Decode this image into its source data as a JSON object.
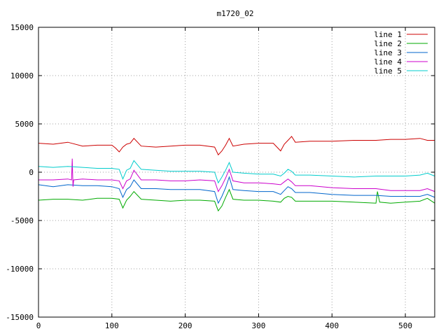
{
  "chart_data": {
    "type": "line",
    "title": "m1720_02",
    "xlabel": "",
    "ylabel": "",
    "xlim": [
      0,
      540
    ],
    "ylim": [
      -15000,
      15000
    ],
    "xticks": [
      0,
      100,
      200,
      300,
      400,
      500
    ],
    "yticks": [
      -15000,
      -10000,
      -5000,
      0,
      5000,
      10000,
      15000
    ],
    "grid": true,
    "legend_position": "top-right",
    "series": [
      {
        "name": "line 1",
        "color": "#cc0000",
        "x": [
          0,
          20,
          40,
          60,
          80,
          100,
          105,
          110,
          115,
          120,
          125,
          130,
          140,
          160,
          180,
          200,
          220,
          240,
          245,
          250,
          255,
          260,
          265,
          280,
          300,
          320,
          330,
          335,
          340,
          345,
          350,
          370,
          400,
          430,
          460,
          480,
          500,
          520,
          530,
          540
        ],
        "y": [
          3000,
          2900,
          3100,
          2700,
          2800,
          2800,
          2500,
          2100,
          2600,
          2900,
          3000,
          3500,
          2700,
          2600,
          2700,
          2800,
          2800,
          2600,
          1800,
          2200,
          2800,
          3500,
          2700,
          2900,
          3000,
          3000,
          2200,
          2900,
          3300,
          3700,
          3100,
          3200,
          3200,
          3300,
          3300,
          3400,
          3400,
          3500,
          3300,
          3300
        ]
      },
      {
        "name": "line 2",
        "color": "#00aa00",
        "x": [
          0,
          20,
          40,
          60,
          80,
          100,
          110,
          115,
          120,
          125,
          130,
          140,
          160,
          180,
          200,
          220,
          240,
          245,
          250,
          255,
          260,
          265,
          280,
          300,
          320,
          330,
          335,
          340,
          345,
          350,
          370,
          400,
          430,
          460,
          462,
          465,
          480,
          500,
          520,
          530,
          540
        ],
        "y": [
          -2900,
          -2800,
          -2800,
          -2900,
          -2700,
          -2700,
          -2800,
          -3700,
          -2900,
          -2500,
          -2000,
          -2800,
          -2900,
          -3000,
          -2900,
          -2900,
          -3000,
          -4000,
          -3500,
          -2600,
          -1800,
          -2800,
          -2900,
          -2900,
          -3000,
          -3100,
          -2700,
          -2500,
          -2600,
          -3000,
          -3000,
          -3000,
          -3100,
          -3200,
          -2000,
          -3100,
          -3200,
          -3100,
          -3000,
          -2700,
          -3200
        ]
      },
      {
        "name": "line 3",
        "color": "#0066cc",
        "x": [
          0,
          20,
          40,
          60,
          80,
          100,
          110,
          115,
          120,
          125,
          130,
          140,
          160,
          180,
          200,
          220,
          240,
          245,
          250,
          255,
          260,
          265,
          280,
          300,
          320,
          330,
          335,
          340,
          345,
          350,
          370,
          400,
          430,
          460,
          480,
          500,
          520,
          530,
          540
        ],
        "y": [
          -1300,
          -1500,
          -1300,
          -1400,
          -1400,
          -1500,
          -1700,
          -2600,
          -1800,
          -1500,
          -800,
          -1700,
          -1700,
          -1800,
          -1800,
          -1800,
          -2000,
          -3200,
          -2500,
          -1600,
          -500,
          -1800,
          -1900,
          -2000,
          -2000,
          -2300,
          -1900,
          -1500,
          -1700,
          -2100,
          -2100,
          -2300,
          -2400,
          -2400,
          -2500,
          -2500,
          -2500,
          -2300,
          -2600
        ]
      },
      {
        "name": "line 4",
        "color": "#cc00cc",
        "x": [
          0,
          20,
          40,
          45,
          46,
          47,
          48,
          60,
          80,
          100,
          110,
          115,
          120,
          125,
          130,
          140,
          160,
          180,
          200,
          220,
          240,
          245,
          250,
          255,
          260,
          265,
          280,
          300,
          320,
          330,
          335,
          340,
          345,
          350,
          370,
          400,
          430,
          460,
          480,
          500,
          520,
          530,
          540
        ],
        "y": [
          -800,
          -800,
          -700,
          -800,
          1400,
          -1500,
          -800,
          -700,
          -800,
          -800,
          -900,
          -1700,
          -900,
          -700,
          200,
          -800,
          -800,
          -900,
          -900,
          -800,
          -900,
          -2000,
          -1400,
          -600,
          300,
          -900,
          -1100,
          -1100,
          -1200,
          -1300,
          -1000,
          -700,
          -1000,
          -1400,
          -1400,
          -1600,
          -1700,
          -1700,
          -1900,
          -1900,
          -1900,
          -1700,
          -2000
        ]
      },
      {
        "name": "line 5",
        "color": "#00cccc",
        "x": [
          0,
          20,
          40,
          60,
          80,
          100,
          110,
          115,
          120,
          125,
          130,
          140,
          160,
          180,
          200,
          220,
          240,
          245,
          250,
          255,
          260,
          265,
          280,
          300,
          320,
          330,
          335,
          340,
          345,
          350,
          370,
          400,
          430,
          460,
          480,
          500,
          520,
          530,
          540
        ],
        "y": [
          600,
          500,
          600,
          500,
          400,
          400,
          300,
          -700,
          200,
          400,
          1200,
          300,
          200,
          100,
          100,
          100,
          0,
          -1100,
          -500,
          200,
          1000,
          0,
          -100,
          -200,
          -200,
          -400,
          -100,
          300,
          100,
          -300,
          -300,
          -400,
          -500,
          -400,
          -400,
          -400,
          -300,
          -100,
          -400
        ]
      }
    ]
  }
}
